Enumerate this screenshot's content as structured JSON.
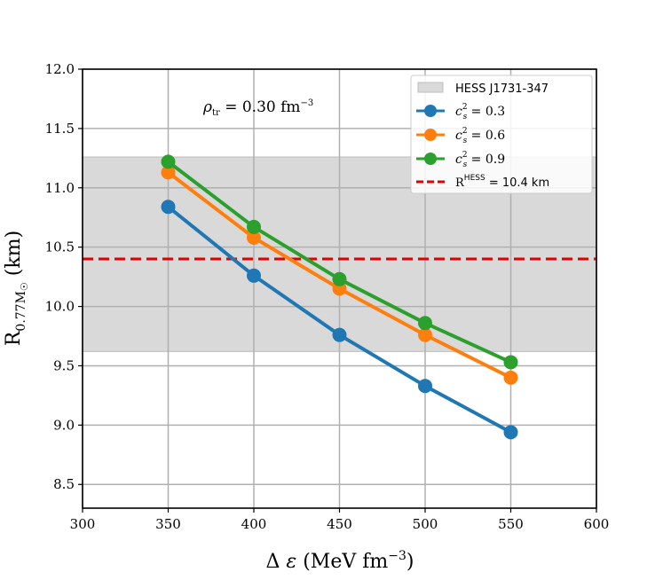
{
  "chart_data": {
    "type": "line",
    "title": "",
    "xlabel": "Δ ε (MeV fm⁻³)",
    "ylabel": "R0.77M☉ (km)",
    "xlim": [
      300,
      600
    ],
    "ylim": [
      8.3,
      12.0
    ],
    "xticks": [
      "300",
      "350",
      "400",
      "450",
      "500",
      "550",
      "600"
    ],
    "yticks": [
      "8.5",
      "9.0",
      "9.5",
      "10.0",
      "10.5",
      "11.0",
      "11.5",
      "12.0"
    ],
    "grid": true,
    "annotation": "ρtr = 0.30 fm⁻³",
    "x": [
      350,
      400,
      450,
      500,
      550
    ],
    "series": [
      {
        "name": "c²s = 0.3",
        "color": "#1f77b4",
        "values": [
          10.84,
          10.26,
          9.76,
          9.33,
          8.94
        ]
      },
      {
        "name": "c²s = 0.6",
        "color": "#ff7f0e",
        "values": [
          11.13,
          10.58,
          10.15,
          9.76,
          9.4
        ]
      },
      {
        "name": "c²s = 0.9",
        "color": "#2ca02c",
        "values": [
          11.22,
          10.67,
          10.23,
          9.86,
          9.53
        ]
      }
    ],
    "band": {
      "name": "HESS J1731-347",
      "ymin": 9.62,
      "ymax": 11.26,
      "color": "#d9d9d9"
    },
    "hline": {
      "name": "RHESS = 10.4 km",
      "y": 10.4,
      "color": "#e00000"
    },
    "legend_position": "top-right"
  }
}
